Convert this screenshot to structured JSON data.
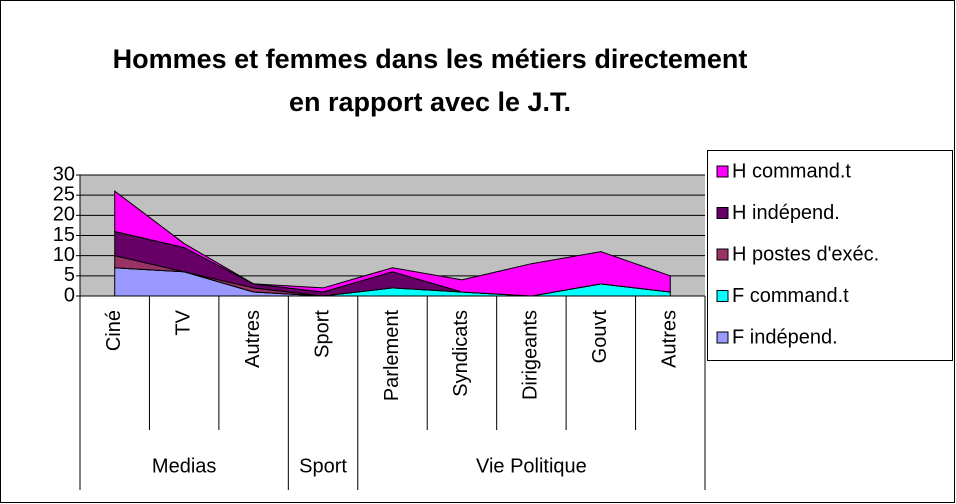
{
  "chart_data": {
    "type": "stacked_area",
    "title": "Hommes et femmes dans les métiers directement en rapport avec le J.T.",
    "categories": [
      "Ciné",
      "TV",
      "Autres",
      "Sport",
      "Parlement",
      "Syndicats",
      "Dirigeants",
      "Gouvt",
      "Autres"
    ],
    "groups": [
      {
        "name": "Medias",
        "count": 3
      },
      {
        "name": "Sport",
        "count": 1
      },
      {
        "name": "Vie Politique",
        "count": 5
      }
    ],
    "series": [
      {
        "name": "F indépend.",
        "color": "#9999ff",
        "values": [
          7,
          6,
          1,
          0,
          0,
          0,
          0,
          0,
          0
        ]
      },
      {
        "name": "F command.t",
        "color": "#00ffff",
        "values": [
          0,
          0,
          0,
          0,
          2,
          1,
          0,
          3,
          1
        ]
      },
      {
        "name": "H postes d'exéc.",
        "color": "#993366",
        "values": [
          3,
          0,
          1,
          0,
          0,
          0,
          0,
          0,
          0
        ]
      },
      {
        "name": "H indépend.",
        "color": "#660066",
        "values": [
          6,
          6,
          1,
          1,
          4,
          0,
          0,
          0,
          0
        ]
      },
      {
        "name": "H command.t",
        "color": "#ff00ff",
        "values": [
          10,
          1,
          0,
          1,
          1,
          3,
          8,
          8,
          4
        ]
      }
    ],
    "ylim": [
      0,
      30
    ],
    "yticks": [
      0,
      5,
      10,
      15,
      20,
      25,
      30
    ],
    "grid": true,
    "legend": "right"
  }
}
